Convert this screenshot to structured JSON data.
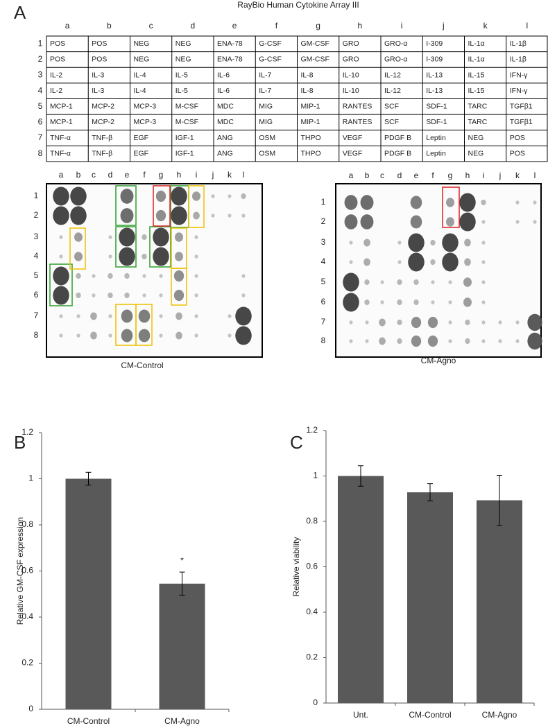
{
  "array": {
    "label": "A",
    "title": "RayBio Human Cytokine Array III",
    "columns": [
      "a",
      "b",
      "c",
      "d",
      "e",
      "f",
      "g",
      "h",
      "i",
      "j",
      "k",
      "l"
    ],
    "rows": [
      "1",
      "2",
      "3",
      "4",
      "5",
      "6",
      "7",
      "8"
    ],
    "cells": [
      [
        "POS",
        "POS",
        "NEG",
        "NEG",
        "ENA-78",
        "G-CSF",
        "GM-CSF",
        "GRO",
        "GRO-α",
        "I-309",
        "IL-1α",
        "IL-1β"
      ],
      [
        "POS",
        "POS",
        "NEG",
        "NEG",
        "ENA-78",
        "G-CSF",
        "GM-CSF",
        "GRO",
        "GRO-α",
        "I-309",
        "IL-1α",
        "IL-1β"
      ],
      [
        "IL-2",
        "IL-3",
        "IL-4",
        "IL-5",
        "IL-6",
        "IL-7",
        "IL-8",
        "IL-10",
        "IL-12",
        "IL-13",
        "IL-15",
        "IFN-γ"
      ],
      [
        "IL-2",
        "IL-3",
        "IL-4",
        "IL-5",
        "IL-6",
        "IL-7",
        "IL-8",
        "IL-10",
        "IL-12",
        "IL-13",
        "IL-15",
        "IFN-γ"
      ],
      [
        "MCP-1",
        "MCP-2",
        "MCP-3",
        "M-CSF",
        "MDC",
        "MIG",
        "MIP-1",
        "RANTES",
        "SCF",
        "SDF-1",
        "TARC",
        "TGFβ1"
      ],
      [
        "MCP-1",
        "MCP-2",
        "MCP-3",
        "M-CSF",
        "MDC",
        "MIG",
        "MIP-1",
        "RANTES",
        "SCF",
        "SDF-1",
        "TARC",
        "TGFβ1"
      ],
      [
        "TNF-α",
        "TNF-β",
        "EGF",
        "IGF-1",
        "ANG",
        "OSM",
        "THPO",
        "VEGF",
        "PDGF B",
        "Leptin",
        "NEG",
        "POS"
      ],
      [
        "TNF-α",
        "TNF-β",
        "EGF",
        "IGF-1",
        "ANG",
        "OSM",
        "THPO",
        "VEGF",
        "PDGF B",
        "Leptin",
        "NEG",
        "POS"
      ]
    ],
    "blots": [
      {
        "caption": "CM-Control"
      },
      {
        "caption": "CM-Agno"
      }
    ]
  },
  "chart_data": [
    {
      "type": "bar",
      "panel_label": "B",
      "y_label": "Relative GM-CSF expression",
      "categories": [
        "CM-Control",
        "CM-Agno"
      ],
      "values": [
        1.0,
        0.545
      ],
      "errors": [
        0.028,
        0.05
      ],
      "annotations": [
        null,
        "*"
      ],
      "color": "#595959",
      "ylim": [
        0,
        1.2
      ],
      "yticks": [
        0,
        0.2,
        0.4,
        0.6,
        0.8,
        1,
        1.2
      ]
    },
    {
      "type": "bar",
      "panel_label": "C",
      "y_label": "Relative viability",
      "categories": [
        "Unt.",
        "CM-Control",
        "CM-Agno"
      ],
      "values": [
        1.0,
        0.928,
        0.893
      ],
      "errors": [
        0.045,
        0.038,
        0.11
      ],
      "color": "#595959",
      "ylim": [
        0,
        1.2
      ],
      "yticks": [
        0,
        0.2,
        0.4,
        0.6,
        0.8,
        1,
        1.2
      ]
    }
  ]
}
